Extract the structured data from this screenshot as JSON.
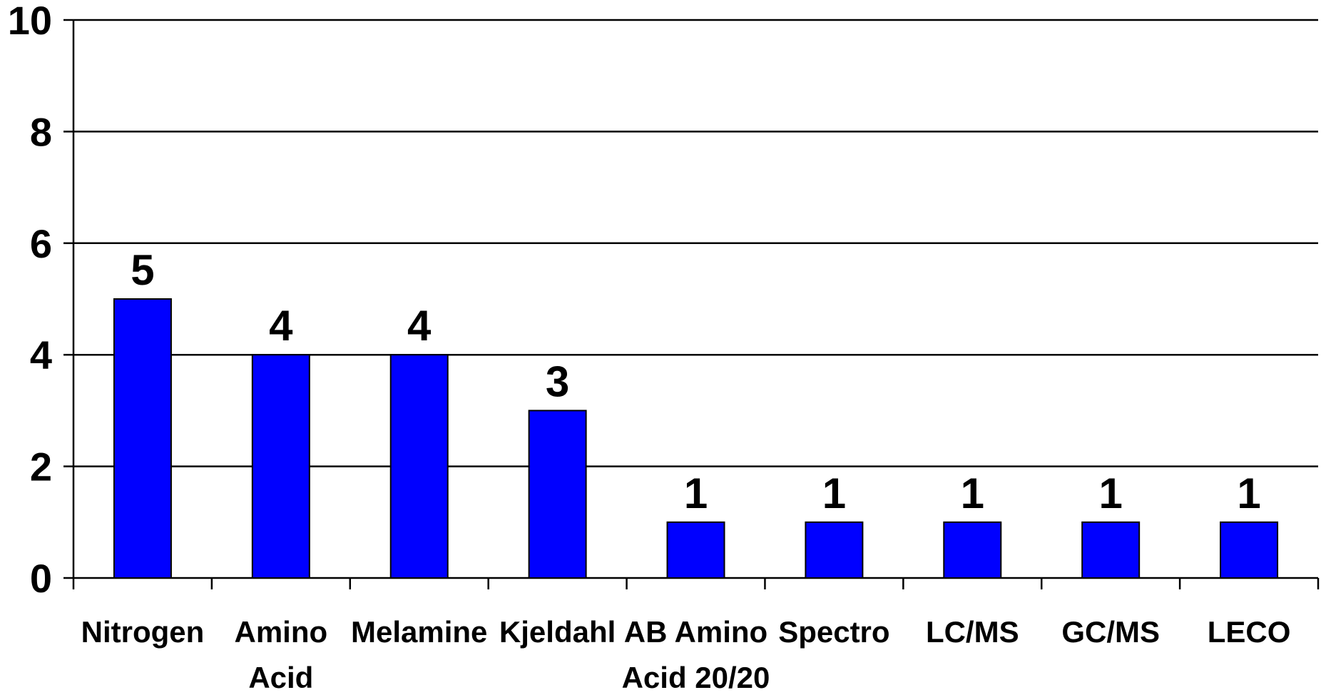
{
  "chart_data": {
    "type": "bar",
    "categories": [
      "Nitrogen",
      "Amino Acid",
      "Melamine",
      "Kjeldahl",
      "AB Amino Acid 20/20",
      "Spectro",
      "LC/MS",
      "GC/MS",
      "LECO"
    ],
    "category_label_lines": [
      [
        "Nitrogen"
      ],
      [
        "Amino",
        "Acid"
      ],
      [
        "Melamine"
      ],
      [
        "Kjeldahl"
      ],
      [
        "AB Amino",
        "Acid 20/20"
      ],
      [
        "Spectro"
      ],
      [
        "LC/MS"
      ],
      [
        "GC/MS"
      ],
      [
        "LECO"
      ]
    ],
    "values": [
      5,
      4,
      4,
      3,
      1,
      1,
      1,
      1,
      1
    ],
    "data_labels": [
      "5",
      "4",
      "4",
      "3",
      "1",
      "1",
      "1",
      "1",
      "1"
    ],
    "ylim": [
      0,
      10
    ],
    "yticks": [
      0,
      2,
      4,
      6,
      8,
      10
    ],
    "ytick_labels": [
      "0",
      "2",
      "4",
      "6",
      "8",
      "10"
    ],
    "grid": true,
    "legend": "none",
    "bar_color": "#0000FF",
    "title": "",
    "xlabel": "",
    "ylabel": ""
  }
}
